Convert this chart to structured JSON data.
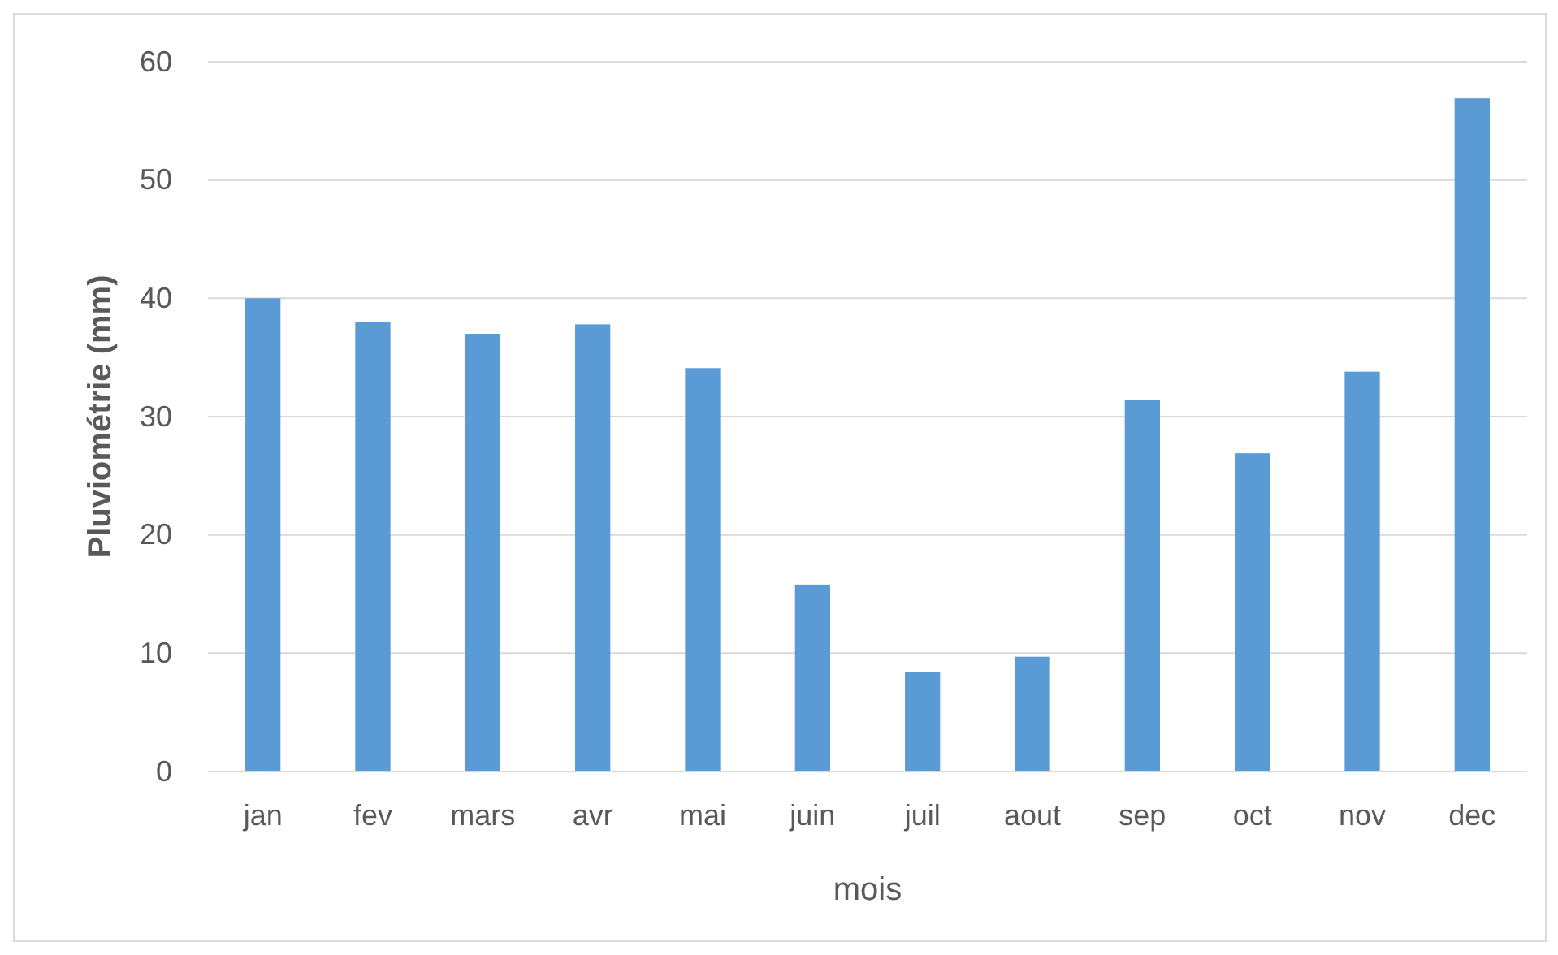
{
  "chart_data": {
    "type": "bar",
    "xlabel": "mois",
    "ylabel": "Pluviométrie (mm)",
    "categories": [
      "jan",
      "fev",
      "mars",
      "avr",
      "mai",
      "juin",
      "juil",
      "aout",
      "sep",
      "oct",
      "nov",
      "dec"
    ],
    "values": [
      40,
      38,
      37,
      37.8,
      34.1,
      15.8,
      8.4,
      9.7,
      31.4,
      26.9,
      33.8,
      56.9
    ],
    "color": "#5b9bd5",
    "ylim": [
      0,
      60
    ],
    "yticks": [
      0,
      10,
      20,
      30,
      40,
      50,
      60
    ],
    "grid": "y"
  }
}
